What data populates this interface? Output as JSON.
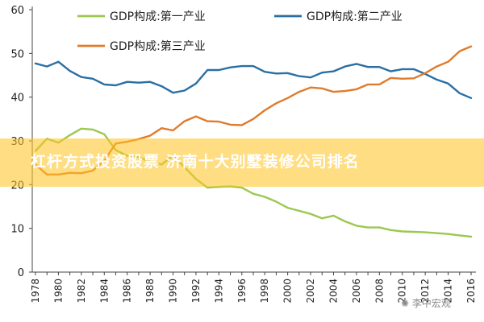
{
  "chart_data": {
    "type": "line",
    "x": [
      1978,
      1979,
      1980,
      1981,
      1982,
      1983,
      1984,
      1985,
      1986,
      1987,
      1988,
      1989,
      1990,
      1991,
      1992,
      1993,
      1994,
      1995,
      1996,
      1997,
      1998,
      1999,
      2000,
      2001,
      2002,
      2003,
      2004,
      2005,
      2006,
      2007,
      2008,
      2009,
      2010,
      2011,
      2012,
      2013,
      2014,
      2015,
      2016
    ],
    "xticks": [
      1978,
      1980,
      1982,
      1984,
      1986,
      1988,
      1990,
      1992,
      1994,
      1996,
      1998,
      2000,
      2002,
      2004,
      2006,
      2008,
      2010,
      2012,
      2014,
      2016
    ],
    "yticks": [
      0,
      10,
      20,
      30,
      40,
      50,
      60
    ],
    "ylim": [
      0,
      60
    ],
    "title": "",
    "xlabel": "",
    "ylabel": "",
    "grid": false,
    "legend_position": "top",
    "series": [
      {
        "name": "GDP构成:第一产业",
        "color": "#9bc850",
        "values": [
          27.7,
          30.5,
          29.6,
          31.3,
          32.8,
          32.6,
          31.5,
          27.9,
          26.6,
          26.3,
          25.2,
          24.6,
          26.6,
          24.0,
          21.3,
          19.3,
          19.5,
          19.6,
          19.3,
          17.9,
          17.2,
          16.1,
          14.7,
          14.0,
          13.3,
          12.3,
          12.9,
          11.6,
          10.6,
          10.2,
          10.2,
          9.6,
          9.3,
          9.2,
          9.1,
          8.9,
          8.7,
          8.4,
          8.1
        ]
      },
      {
        "name": "GDP构成:第二产业",
        "color": "#2a6fa3",
        "values": [
          47.7,
          47.0,
          48.1,
          46.0,
          44.6,
          44.2,
          42.9,
          42.7,
          43.5,
          43.3,
          43.5,
          42.5,
          41.0,
          41.5,
          43.1,
          46.2,
          46.2,
          46.8,
          47.1,
          47.1,
          45.8,
          45.4,
          45.5,
          44.8,
          44.5,
          45.6,
          45.9,
          47.0,
          47.6,
          46.9,
          46.9,
          45.9,
          46.4,
          46.4,
          45.3,
          44.0,
          43.1,
          40.9,
          39.8
        ]
      },
      {
        "name": "GDP构成:第三产业",
        "color": "#e07b2c",
        "values": [
          24.6,
          22.3,
          22.3,
          22.7,
          22.6,
          23.2,
          25.5,
          29.4,
          29.8,
          30.4,
          31.2,
          32.9,
          32.4,
          34.5,
          35.6,
          34.5,
          34.4,
          33.7,
          33.6,
          35.0,
          37.0,
          38.6,
          39.8,
          41.2,
          42.2,
          42.0,
          41.2,
          41.4,
          41.8,
          42.9,
          42.9,
          44.4,
          44.2,
          44.3,
          45.5,
          47.0,
          48.1,
          50.5,
          51.6
        ]
      }
    ]
  },
  "banner": {
    "title": "杠杆方式投资股票 济南十大别墅装修公司排名"
  },
  "watermark": {
    "text": "李中宏观"
  }
}
